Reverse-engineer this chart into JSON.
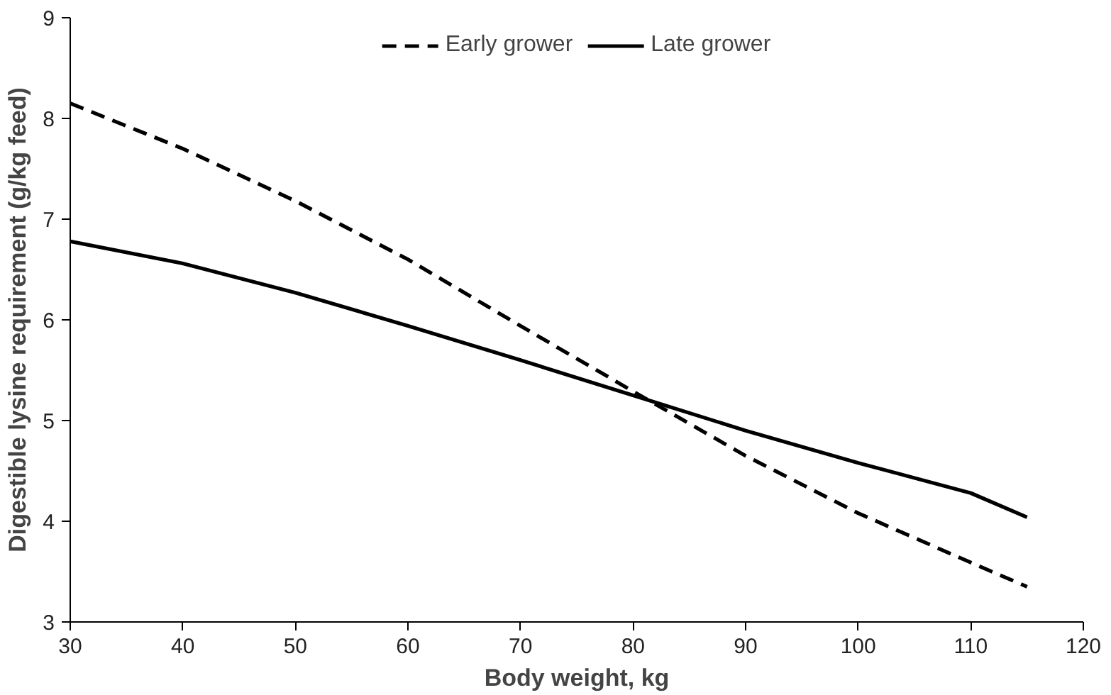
{
  "chart_data": {
    "type": "line",
    "xlabel": "Body weight, kg",
    "ylabel": "Digestible lysine requirement (g/kg feed)",
    "xlim": [
      30,
      120
    ],
    "xticks": [
      30,
      40,
      50,
      60,
      70,
      80,
      90,
      100,
      110,
      120
    ],
    "ylim": [
      3,
      9
    ],
    "yticks": [
      3,
      4,
      5,
      6,
      7,
      8,
      9
    ],
    "grid": false,
    "legend": "top",
    "marker": "none",
    "series": [
      {
        "name": "Early grower",
        "color": "#000000",
        "line_style": "dashed",
        "x": [
          30,
          40,
          50,
          60,
          70,
          80,
          90,
          100,
          110,
          115
        ],
        "values": [
          8.15,
          7.7,
          7.18,
          6.6,
          5.94,
          5.29,
          4.65,
          4.08,
          3.59,
          3.35
        ]
      },
      {
        "name": "Late grower",
        "color": "#000000",
        "line_style": "solid",
        "x": [
          30,
          40,
          50,
          60,
          70,
          80,
          90,
          100,
          110,
          115
        ],
        "values": [
          6.78,
          6.56,
          6.27,
          5.94,
          5.6,
          5.25,
          4.9,
          4.58,
          4.28,
          4.04
        ]
      }
    ]
  }
}
